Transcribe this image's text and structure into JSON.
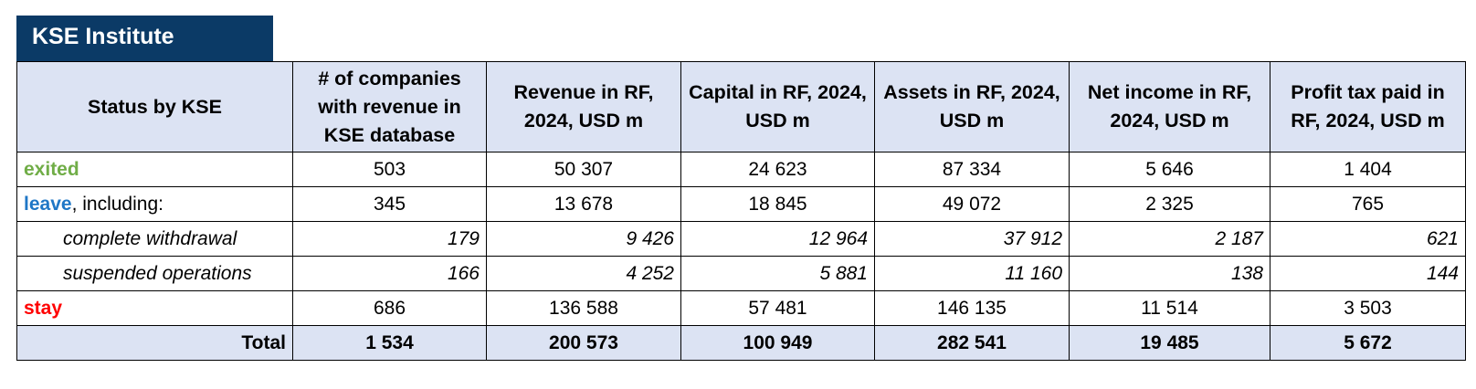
{
  "brand": {
    "title": "KSE Institute"
  },
  "table": {
    "headers": [
      "Status by KSE",
      "# of companies with revenue in KSE database",
      "Revenue in RF, 2024, USD m",
      "Capital in RF, 2024, USD m",
      "Assets in RF, 2024, USD m",
      "Net income in RF, 2024, USD m",
      "Profit tax paid in RF, 2024, USD m"
    ],
    "rows": {
      "exited": {
        "status": "exited",
        "values": [
          "503",
          "50 307",
          "24 623",
          "87 334",
          "5 646",
          "1 404"
        ]
      },
      "leave": {
        "status": "leave",
        "suffix": ", including:",
        "values": [
          "345",
          "13 678",
          "18 845",
          "49 072",
          "2 325",
          "765"
        ]
      },
      "complete_withdrawal": {
        "label": "complete withdrawal",
        "values": [
          "179",
          "9 426",
          "12 964",
          "37 912",
          "2 187",
          "621"
        ]
      },
      "suspended_operations": {
        "label": "suspended operations",
        "values": [
          "166",
          "4 252",
          "5 881",
          "11 160",
          "138",
          "144"
        ]
      },
      "stay": {
        "status": "stay",
        "values": [
          "686",
          "136 588",
          "57 481",
          "146 135",
          "11 514",
          "3 503"
        ]
      },
      "total": {
        "label": "Total",
        "values": [
          "1 534",
          "200 573",
          "100 949",
          "282 541",
          "19 485",
          "5 672"
        ]
      }
    }
  },
  "colors": {
    "header_bg": "#dce3f3",
    "brand_bg": "#0b3a66",
    "exited": "#70ad47",
    "leave": "#1f77c6",
    "stay": "#ff0000"
  }
}
